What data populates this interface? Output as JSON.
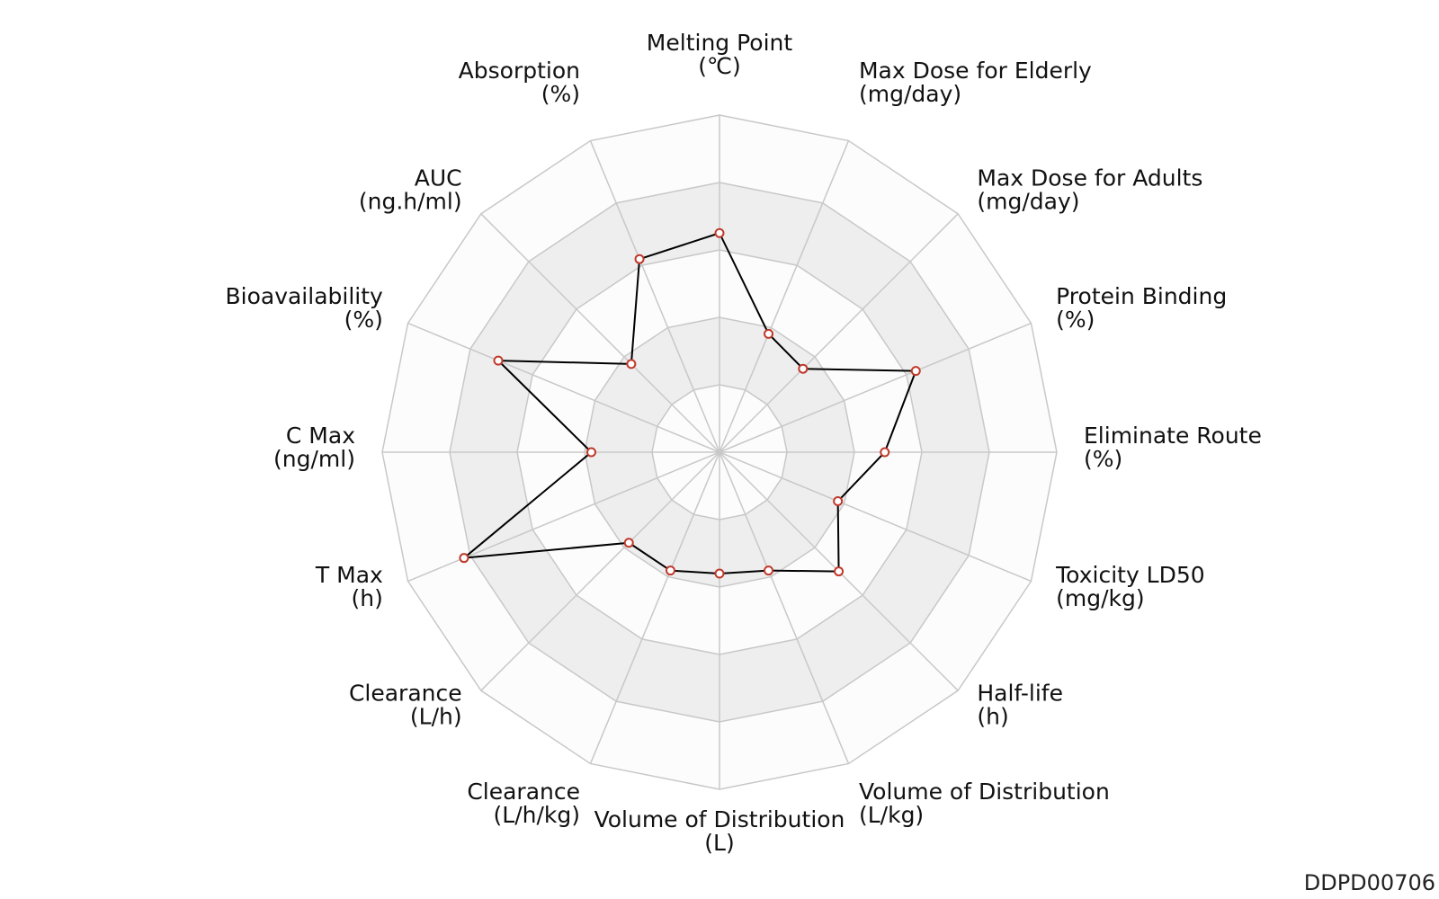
{
  "chart_data": {
    "type": "radar",
    "axes": [
      {
        "name": "Melting Point",
        "unit": "(℃)"
      },
      {
        "name": "Max Dose for Elderly",
        "unit": "(mg/day)"
      },
      {
        "name": "Max Dose for Adults",
        "unit": "(mg/day)"
      },
      {
        "name": "Protein Binding",
        "unit": "(%)"
      },
      {
        "name": "Eliminate Route",
        "unit": "(%)"
      },
      {
        "name": "Toxicity LD50",
        "unit": "(mg/kg)"
      },
      {
        "name": "Half-life",
        "unit": "(h)"
      },
      {
        "name": "Volume of Distribution",
        "unit": "(L/kg)"
      },
      {
        "name": "Volume of Distribution",
        "unit": "(L)"
      },
      {
        "name": "Clearance",
        "unit": "(L/h/kg)"
      },
      {
        "name": "Clearance",
        "unit": "(L/h)"
      },
      {
        "name": "T Max",
        "unit": "(h)"
      },
      {
        "name": "C Max",
        "unit": "(ng/ml)"
      },
      {
        "name": "Bioavailability",
        "unit": "(%)"
      },
      {
        "name": "AUC",
        "unit": "(ng.h/ml)"
      },
      {
        "name": "Absorption",
        "unit": "(%)"
      }
    ],
    "values": [
      0.65,
      0.38,
      0.35,
      0.63,
      0.49,
      0.38,
      0.5,
      0.38,
      0.36,
      0.38,
      0.38,
      0.82,
      0.38,
      0.71,
      0.37,
      0.62
    ],
    "range": [
      0,
      1
    ],
    "rings": 5,
    "grid": true,
    "colors": {
      "line": "#000000",
      "marker_edge": "#c0392b",
      "marker_fill": "#ffffff",
      "grid_line": "#c8c8c8",
      "band_light": "#fcfcfc",
      "band_dark": "#eeeeee"
    }
  },
  "footer": {
    "id": "DDPD00706"
  }
}
